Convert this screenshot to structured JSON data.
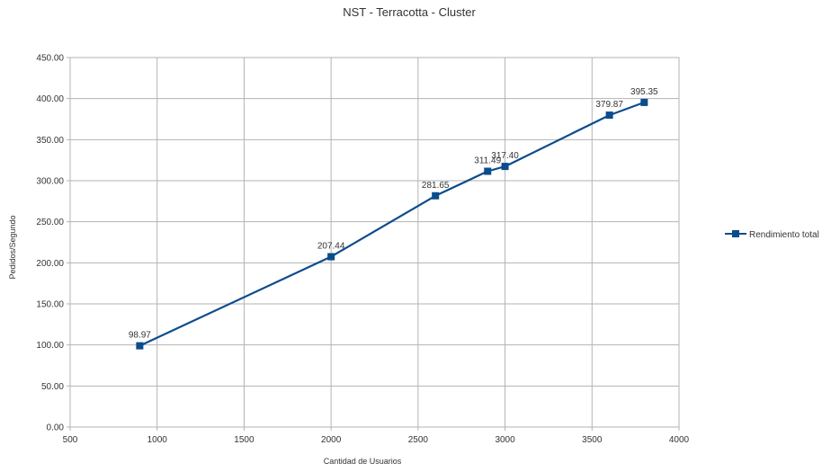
{
  "chart_data": {
    "type": "line",
    "title": "NST - Terracotta - Cluster",
    "xlabel": "Cantidad de Usuarios",
    "ylabel": "Pedidos/Segundo",
    "xlim": [
      500,
      4000
    ],
    "ylim": [
      0,
      450
    ],
    "x_ticks": [
      "500",
      "1000",
      "1500",
      "2000",
      "2500",
      "3000",
      "3500",
      "4000"
    ],
    "y_ticks": [
      "0.00",
      "50.00",
      "100.00",
      "150.00",
      "200.00",
      "250.00",
      "300.00",
      "350.00",
      "400.00",
      "450.00"
    ],
    "grid": true,
    "legend_position": "right",
    "series": [
      {
        "name": "Rendimiento total",
        "color": "#0b4c8c",
        "marker": "square",
        "x": [
          900,
          2000,
          2600,
          2900,
          3000,
          3600,
          3800
        ],
        "y": [
          98.97,
          207.44,
          281.65,
          311.49,
          317.4,
          379.87,
          395.35
        ],
        "labels": [
          "98.97",
          "207.44",
          "281.65",
          "311.49",
          "317.40",
          "379.87",
          "395.35"
        ]
      }
    ]
  }
}
